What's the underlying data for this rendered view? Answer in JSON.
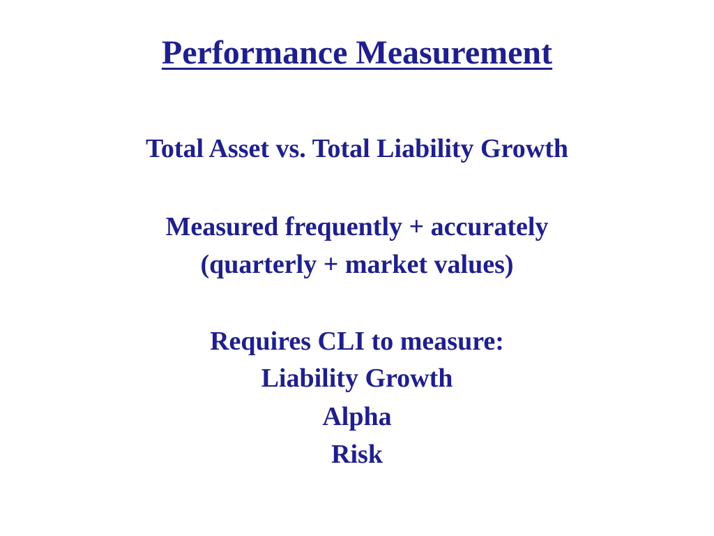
{
  "slide": {
    "title": "Performance Measurement",
    "lines": [
      "Total Asset vs. Total Liability Growth",
      "Measured frequently + accurately",
      "(quarterly + market values)",
      "Requires CLI to measure:",
      "Liability Growth",
      "Alpha",
      "Risk"
    ],
    "text_color": "#1f1f8c",
    "background_color": "#ffffff"
  }
}
